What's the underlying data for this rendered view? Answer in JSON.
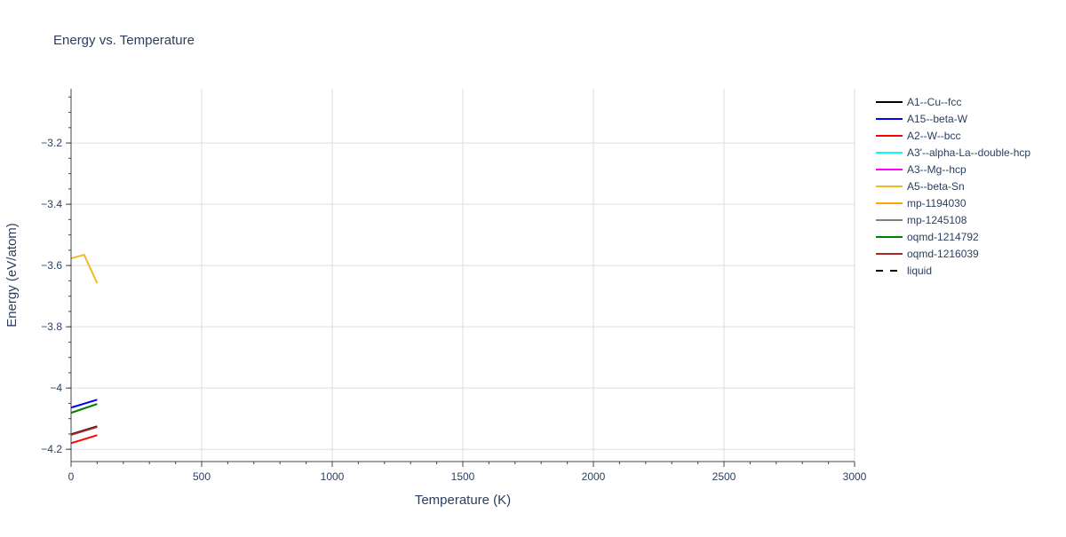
{
  "chart_data": {
    "type": "line",
    "title": "Energy vs. Temperature",
    "xlabel": "Temperature (K)",
    "ylabel": "Energy (eV/atom)",
    "xlim": [
      0,
      3000
    ],
    "ylim": [
      -4.24,
      -3.023
    ],
    "xticks": [
      0,
      500,
      1000,
      1500,
      2000,
      2500,
      3000
    ],
    "xtick_labels": [
      "0",
      "500",
      "1000",
      "1500",
      "2000",
      "2500",
      "3000"
    ],
    "yticks": [
      -4.2,
      -4,
      -3.8,
      -3.6,
      -3.4,
      -3.2
    ],
    "ytick_labels": [
      "−4.2",
      "−4",
      "−3.8",
      "−3.6",
      "−3.4",
      "−3.2"
    ],
    "grid": true,
    "legend_placement": "right",
    "series": [
      {
        "name": "A1--Cu--fcc",
        "color": "#000000",
        "x": [
          0,
          100
        ],
        "y": [
          -4.151,
          -4.125
        ]
      },
      {
        "name": "A15--beta-W",
        "color": "#0000ff",
        "x": [
          0,
          100
        ],
        "y": [
          -4.064,
          -4.038
        ]
      },
      {
        "name": "A2--W--bcc",
        "color": "#ff0000",
        "x": [
          0,
          100
        ],
        "y": [
          -4.18,
          -4.154
        ]
      },
      {
        "name": "A3'--alpha-La--double-hcp",
        "color": "#00ffff",
        "x": [],
        "y": []
      },
      {
        "name": "A3--Mg--hcp",
        "color": "#ff00ff",
        "x": [],
        "y": []
      },
      {
        "name": "A5--beta-Sn",
        "color": "#eebb22",
        "x": [
          0,
          50,
          100
        ],
        "y": [
          -3.577,
          -3.565,
          -3.658
        ]
      },
      {
        "name": "mp-1194030",
        "color": "#ffa500",
        "x": [],
        "y": []
      },
      {
        "name": "mp-1245108",
        "color": "#808080",
        "x": [],
        "y": []
      },
      {
        "name": "oqmd-1214792",
        "color": "#008000",
        "x": [
          0,
          100
        ],
        "y": [
          -4.081,
          -4.052
        ]
      },
      {
        "name": "oqmd-1216039",
        "color": "#a52a2a",
        "x": [
          0,
          100
        ],
        "y": [
          -4.153,
          -4.127
        ]
      },
      {
        "name": "liquid",
        "color": "#000000",
        "dash": true,
        "x": [],
        "y": []
      }
    ]
  }
}
